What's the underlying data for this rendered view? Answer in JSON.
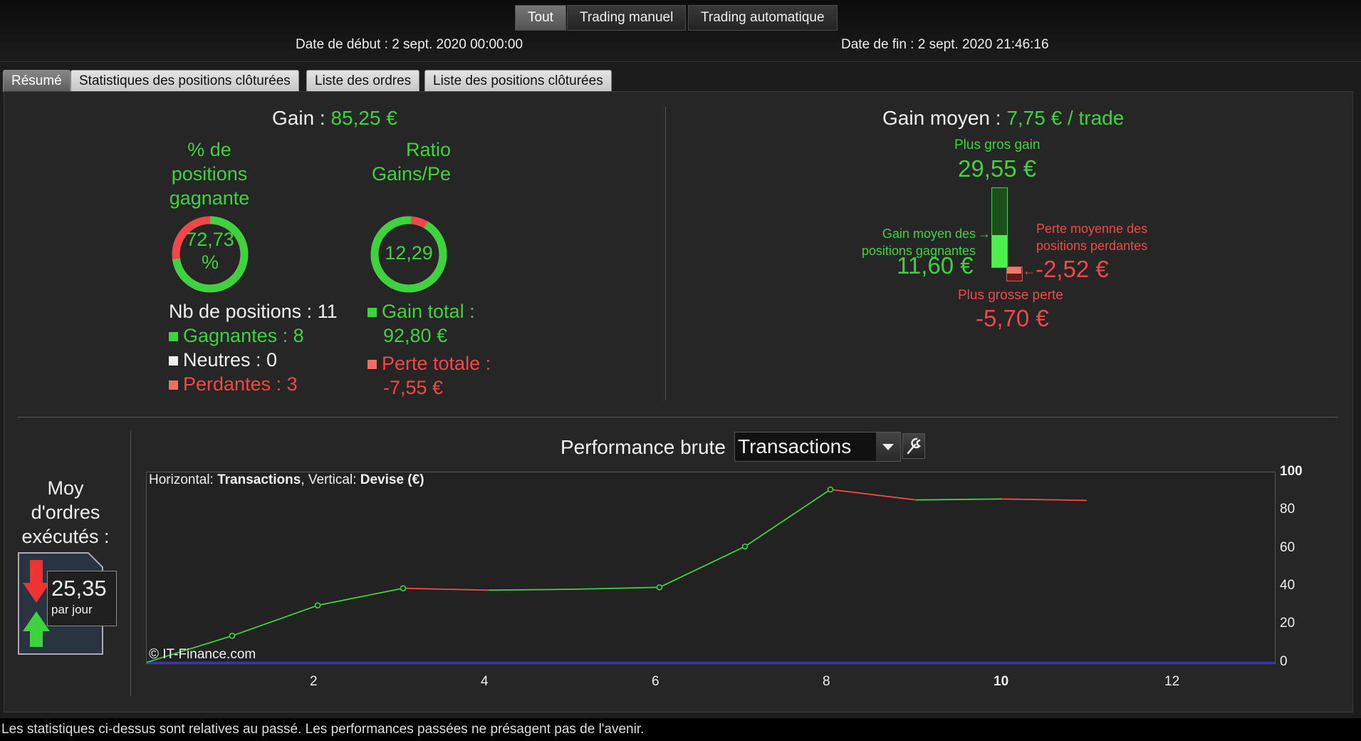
{
  "filters": [
    "Tout",
    "Trading manuel",
    "Trading automatique"
  ],
  "dates": {
    "start": "Date de début : 2 sept. 2020 00:00:00",
    "end": "Date de fin : 2 sept. 2020 21:46:16"
  },
  "tabs": [
    "Résumé",
    "Statistiques des positions clôturées",
    "Liste des ordres",
    "Liste des positions clôturées"
  ],
  "gain": {
    "label": "Gain :",
    "value": "85,25 €"
  },
  "win_pct": {
    "title_lines": [
      "% de",
      "positions",
      "gagnante"
    ],
    "value_lines": [
      "72,73",
      "%"
    ],
    "fraction": 0.7273
  },
  "ratio": {
    "title_lines": [
      "Ratio",
      "Gains/Pe"
    ],
    "value": "12,29",
    "fraction": 0.925
  },
  "positions": {
    "count": "Nb de positions : 11",
    "winners": "Gagnantes : 8",
    "neutral": "Neutres : 0",
    "losers": "Perdantes : 3"
  },
  "totals": {
    "gain_label": "Gain total :",
    "gain_value": "92,80 €",
    "loss_label": "Perte totale :",
    "loss_value": "-7,55 €"
  },
  "avg_gain": {
    "label": "Gain moyen :",
    "value": "7,75 € / trade",
    "biggest_gain_label": "Plus gros gain",
    "biggest_gain_value": "29,55 €",
    "avg_win_label_1": "Gain moyen des",
    "avg_win_label_2": "positions gagnantes",
    "avg_win_value": "11,60 €",
    "avg_loss_label_1": "Perte moyenne des",
    "avg_loss_label_2": "positions perdantes",
    "avg_loss_value": "-2,52 €",
    "biggest_loss_label": "Plus grosse perte",
    "biggest_loss_value": "-5,70 €"
  },
  "orders": {
    "label_lines": [
      "Moy",
      "d'ordres",
      "exécutés :"
    ],
    "value": "25,35",
    "unit": "par jour"
  },
  "perf": {
    "title": "Performance brute",
    "selected": "Transactions",
    "axis_prefix_h": "Horizontal:",
    "axis_h": "Transactions",
    "axis_prefix_v": ", Vertical:",
    "axis_v": "Devise (€)",
    "copyright": "© IT-Finance.com"
  },
  "colors": {
    "gain": "#3ed33e",
    "loss": "#f04848",
    "zero_line": "#3a3aff"
  },
  "chart_data": {
    "type": "line",
    "x": [
      0,
      1,
      2,
      3,
      4,
      5,
      6,
      7,
      8,
      9,
      10,
      11
    ],
    "y": [
      0,
      14,
      30,
      39,
      38,
      38.5,
      39.5,
      61,
      91,
      85.5,
      86,
      85.25
    ],
    "markers": [
      1,
      2,
      3,
      6,
      7,
      8
    ],
    "xticks": [
      2,
      4,
      6,
      8,
      10,
      12
    ],
    "yticks": [
      0,
      20,
      40,
      60,
      80,
      100
    ],
    "xlim": [
      0,
      13.2
    ],
    "ylim": [
      -0.5,
      100
    ],
    "xlabel": "Transactions",
    "ylabel": "Devise (€)"
  },
  "disclaimer": "Les statistiques ci-dessus sont relatives au passé. Les performances passées ne présagent pas de l'avenir."
}
